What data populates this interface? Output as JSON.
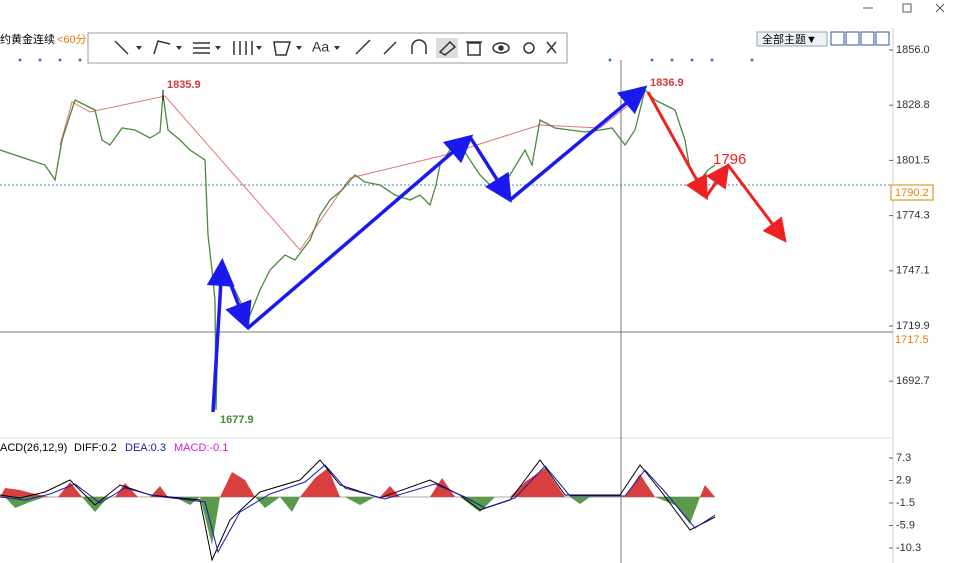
{
  "window": {
    "title_fragment": "约黄金连续",
    "period": "<60分"
  },
  "toolbar": {
    "text_tool": "Aa",
    "theme_button": "全部主题▼"
  },
  "price_axis": {
    "ticks": [
      "1856.0",
      "1828.8",
      "1801.5",
      "1774.3",
      "1747.1",
      "1719.9",
      "1692.7"
    ],
    "current_price": "1790.2",
    "crosshair_price": "1717.5"
  },
  "annotations": {
    "high_left": "1835.9",
    "high_right": "1836.9",
    "low": "1677.9",
    "target": "1796"
  },
  "macd": {
    "label": "ACD(26,12,9)",
    "diff": "DIFF:0.2",
    "dea": "DEA:0.3",
    "macd": "MACD:-0.1",
    "ticks": [
      "7.3",
      "2.9",
      "-1.5",
      "-5.9",
      "-10.3"
    ]
  }
}
